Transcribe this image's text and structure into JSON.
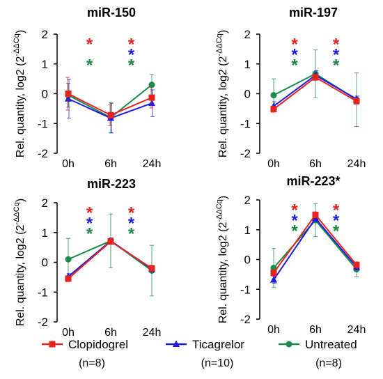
{
  "ylabel": "Rel. quantity, log2 (2",
  "ylabel_sup": "-ΔΔCq",
  "ylabel_close": ")",
  "colors": {
    "Clopidogrel": "#e8231e",
    "Ticagrelor": "#1c1ce0",
    "Untreated": "#1a8a4a"
  },
  "legend": [
    {
      "name": "Clopidogrel",
      "n": "(n=8)",
      "marker": "square"
    },
    {
      "name": "Ticagrelor",
      "n": "(n=10)",
      "marker": "triangle"
    },
    {
      "name": "Untreated",
      "n": "(n=8)",
      "marker": "circle"
    }
  ],
  "chart_data": [
    {
      "type": "line",
      "title": "miR-150",
      "categories": [
        "0h",
        "6h",
        "24h"
      ],
      "ylim": [
        -2,
        2
      ],
      "yticks": [
        "2",
        "1",
        "0",
        "-1",
        "-2"
      ],
      "series": [
        {
          "name": "Clopidogrel",
          "values": [
            0.0,
            -0.72,
            -0.13
          ],
          "err": [
            0.55,
            0.35,
            0.35
          ]
        },
        {
          "name": "Ticagrelor",
          "values": [
            -0.17,
            -0.82,
            -0.32
          ],
          "err": [
            0.65,
            0.5,
            0.45
          ]
        },
        {
          "name": "Untreated",
          "values": [
            -0.05,
            -0.8,
            0.3
          ],
          "err": [
            0.4,
            0.5,
            0.35
          ]
        }
      ],
      "stars": [
        {
          "x_between": [
            0,
            1
          ],
          "colors": [
            "Clopidogrel",
            "Untreated"
          ],
          "rows": [
            0,
            2
          ]
        },
        {
          "x_between": [
            1,
            2
          ],
          "colors": [
            "Clopidogrel",
            "Ticagrelor",
            "Untreated"
          ],
          "rows": [
            0,
            1,
            2
          ]
        }
      ]
    },
    {
      "type": "line",
      "title": "miR-197",
      "categories": [
        "0h",
        "6h",
        "24h"
      ],
      "ylim": [
        -2,
        2
      ],
      "yticks": [
        "2",
        "1",
        "0",
        "-1",
        "-2"
      ],
      "series": [
        {
          "name": "Clopidogrel",
          "values": [
            -0.52,
            0.55,
            -0.25
          ],
          "err": [
            0.1,
            0.1,
            0.1
          ]
        },
        {
          "name": "Ticagrelor",
          "values": [
            -0.42,
            0.62,
            -0.18
          ],
          "err": [
            0.15,
            0.15,
            0.1
          ]
        },
        {
          "name": "Untreated",
          "values": [
            -0.05,
            0.67,
            -0.2
          ],
          "err": [
            0.55,
            0.8,
            0.9
          ]
        }
      ],
      "stars": [
        {
          "x_between": [
            0,
            1
          ],
          "colors": [
            "Clopidogrel",
            "Ticagrelor",
            "Untreated"
          ],
          "rows": [
            0,
            1,
            2
          ]
        },
        {
          "x_between": [
            1,
            2
          ],
          "colors": [
            "Clopidogrel",
            "Ticagrelor",
            "Untreated"
          ],
          "rows": [
            0,
            1,
            2
          ]
        }
      ]
    },
    {
      "type": "line",
      "title": "miR-223",
      "categories": [
        "0h",
        "6h",
        "24h"
      ],
      "ylim": [
        -2,
        2
      ],
      "yticks": [
        "2",
        "1",
        "0",
        "-1",
        "-2"
      ],
      "series": [
        {
          "name": "Clopidogrel",
          "values": [
            -0.55,
            0.7,
            -0.2
          ],
          "err": [
            0.1,
            0.1,
            0.1
          ]
        },
        {
          "name": "Ticagrelor",
          "values": [
            -0.48,
            0.72,
            -0.22
          ],
          "err": [
            0.1,
            0.1,
            0.1
          ]
        },
        {
          "name": "Untreated",
          "values": [
            0.1,
            0.72,
            -0.28
          ],
          "err": [
            0.7,
            0.9,
            0.85
          ]
        }
      ],
      "stars": [
        {
          "x_between": [
            0,
            1
          ],
          "colors": [
            "Clopidogrel",
            "Ticagrelor",
            "Untreated"
          ],
          "rows": [
            0,
            1,
            2
          ]
        },
        {
          "x_between": [
            1,
            2
          ],
          "colors": [
            "Clopidogrel",
            "Ticagrelor",
            "Untreated"
          ],
          "rows": [
            0,
            1,
            2
          ]
        }
      ]
    },
    {
      "type": "line",
      "title": "miR-223*",
      "categories": [
        "0h",
        "6h",
        "24h"
      ],
      "ylim": [
        -2,
        2
      ],
      "yticks": [
        "2",
        "1",
        "0",
        "-1",
        "-2"
      ],
      "series": [
        {
          "name": "Clopidogrel",
          "values": [
            -0.45,
            1.5,
            -0.18
          ],
          "err": [
            0.1,
            0.1,
            0.1
          ]
        },
        {
          "name": "Ticagrelor",
          "values": [
            -0.68,
            1.38,
            -0.25
          ],
          "err": [
            0.12,
            0.12,
            0.1
          ]
        },
        {
          "name": "Untreated",
          "values": [
            -0.28,
            1.32,
            -0.33
          ],
          "err": [
            0.65,
            0.55,
            0.25
          ]
        }
      ],
      "stars": [
        {
          "x_between": [
            0,
            1
          ],
          "colors": [
            "Clopidogrel",
            "Ticagrelor",
            "Untreated"
          ],
          "rows": [
            0,
            1,
            2
          ]
        },
        {
          "x_between": [
            1,
            2
          ],
          "colors": [
            "Clopidogrel",
            "Ticagrelor",
            "Untreated"
          ],
          "rows": [
            0,
            1,
            2
          ]
        }
      ]
    }
  ]
}
